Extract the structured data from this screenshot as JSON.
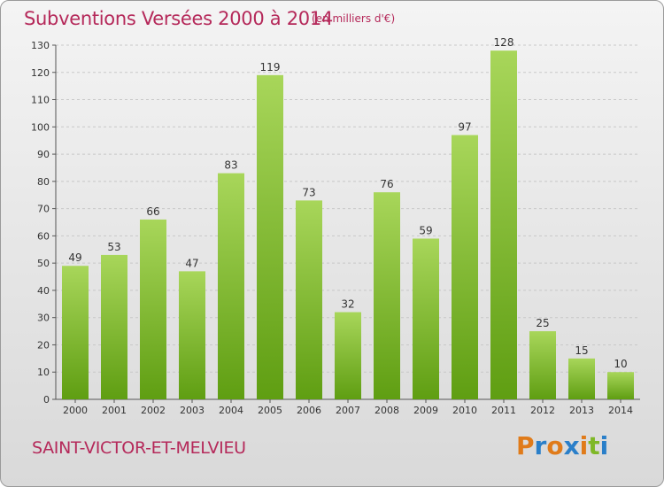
{
  "header": {
    "title": "Subventions Versées 2000 à 2014",
    "subtitle": "(en milliers d'€)"
  },
  "commune": "SAINT-VICTOR-ET-MELVIEU",
  "logo": {
    "text": "Proxiti",
    "letters": [
      "P",
      "r",
      "o",
      "x",
      "i",
      "t",
      "i"
    ],
    "colors": [
      "#e07b1a",
      "#2a7fc9",
      "#e07b1a",
      "#2a7fc9",
      "#e07b1a",
      "#7fb827",
      "#2a7fc9"
    ]
  },
  "colors": {
    "title": "#b5295a",
    "bar_top": "#a8d65a",
    "bar_bottom": "#5f9e12",
    "grid": "#c8c8c8"
  },
  "chart_data": {
    "type": "bar",
    "categories": [
      "2000",
      "2001",
      "2002",
      "2003",
      "2004",
      "2005",
      "2006",
      "2007",
      "2008",
      "2009",
      "2010",
      "2011",
      "2012",
      "2013",
      "2014"
    ],
    "values": [
      49,
      53,
      66,
      47,
      83,
      119,
      73,
      32,
      76,
      59,
      97,
      128,
      25,
      15,
      10
    ],
    "ylim": [
      0,
      130
    ],
    "yticks": [
      0,
      10,
      20,
      30,
      40,
      50,
      60,
      70,
      80,
      90,
      100,
      110,
      120,
      130
    ],
    "grid": true,
    "xlabel": "",
    "ylabel": ""
  }
}
